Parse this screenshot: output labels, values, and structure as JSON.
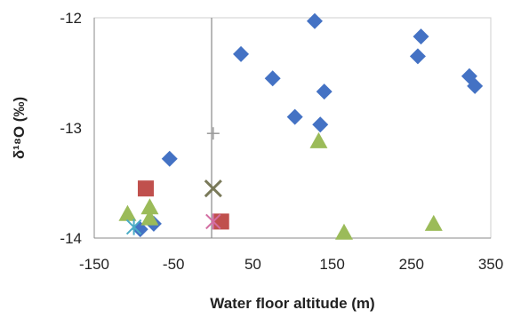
{
  "chart_data": {
    "type": "scatter",
    "title": "",
    "xlabel": "Water floor altitude (m)",
    "ylabel": "δ¹⁸O (‰)",
    "xlim": [
      -150,
      350
    ],
    "ylim": [
      -14,
      -12
    ],
    "x_ticks": [
      "-150",
      "-50",
      "50",
      "150",
      "250",
      "350"
    ],
    "y_ticks": [
      "-12",
      "-13",
      "-14"
    ],
    "grid": false,
    "legend": "none",
    "series": [
      {
        "marker": "diamond",
        "color": "#4472C4",
        "points": [
          {
            "x": -55,
            "y": -13.28
          },
          {
            "x": -75,
            "y": -13.87
          },
          {
            "x": -92,
            "y": -13.92
          },
          {
            "x": 35,
            "y": -12.33
          },
          {
            "x": 75,
            "y": -12.55
          },
          {
            "x": 103,
            "y": -12.9
          },
          {
            "x": 128,
            "y": -12.03
          },
          {
            "x": 135,
            "y": -12.97
          },
          {
            "x": 140,
            "y": -12.67
          },
          {
            "x": 262,
            "y": -12.17
          },
          {
            "x": 258,
            "y": -12.35
          },
          {
            "x": 323,
            "y": -12.53
          },
          {
            "x": 330,
            "y": -12.62
          }
        ]
      },
      {
        "marker": "square",
        "color": "#C0504D",
        "points": [
          {
            "x": -85,
            "y": -13.55
          },
          {
            "x": 10,
            "y": -13.85
          }
        ]
      },
      {
        "marker": "triangle",
        "color": "#9BBB59",
        "points": [
          {
            "x": -108,
            "y": -13.78
          },
          {
            "x": -80,
            "y": -13.72
          },
          {
            "x": -80,
            "y": -13.82
          },
          {
            "x": 133,
            "y": -13.12
          },
          {
            "x": 165,
            "y": -13.95
          },
          {
            "x": 278,
            "y": -13.87
          }
        ]
      },
      {
        "marker": "x",
        "color": "#7A7A5A",
        "points": [
          {
            "x": 0,
            "y": -13.55
          }
        ]
      },
      {
        "marker": "star",
        "color": "#4BACC6",
        "points": [
          {
            "x": -100,
            "y": -13.9
          }
        ]
      },
      {
        "marker": "star",
        "color": "#D36EA2",
        "points": [
          {
            "x": 0,
            "y": -13.85
          }
        ]
      },
      {
        "marker": "plus",
        "color": "#9A9A9A",
        "points": [
          {
            "x": 0,
            "y": -13.05
          }
        ]
      }
    ]
  }
}
